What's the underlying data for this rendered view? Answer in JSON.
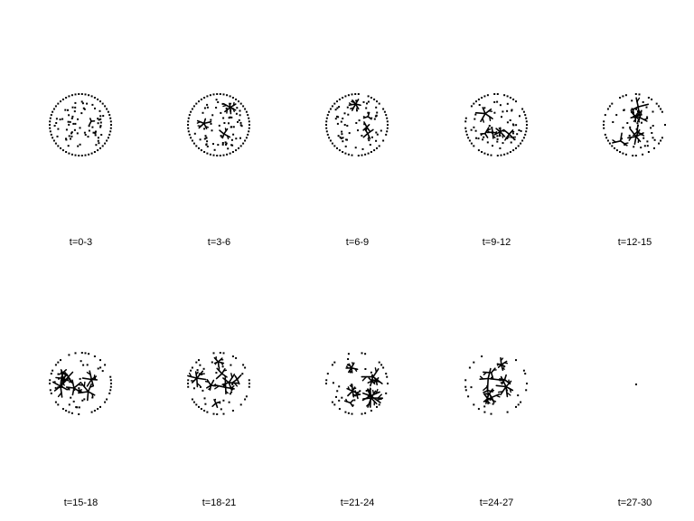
{
  "figure": {
    "colors": {
      "ink": "#000000",
      "background": "#ffffff"
    },
    "panels": [
      {
        "label": "t=0-3",
        "stage": 0
      },
      {
        "label": "t=3-6",
        "stage": 1
      },
      {
        "label": "t=6-9",
        "stage": 2
      },
      {
        "label": "t=9-12",
        "stage": 3
      },
      {
        "label": "t=12-15",
        "stage": 4
      },
      {
        "label": "t=15-18",
        "stage": 5
      },
      {
        "label": "t=18-21",
        "stage": 6
      },
      {
        "label": "t=21-24",
        "stage": 7
      },
      {
        "label": "t=24-27",
        "stage": 8
      },
      {
        "label": "t=27-30",
        "stage": 9
      }
    ]
  }
}
